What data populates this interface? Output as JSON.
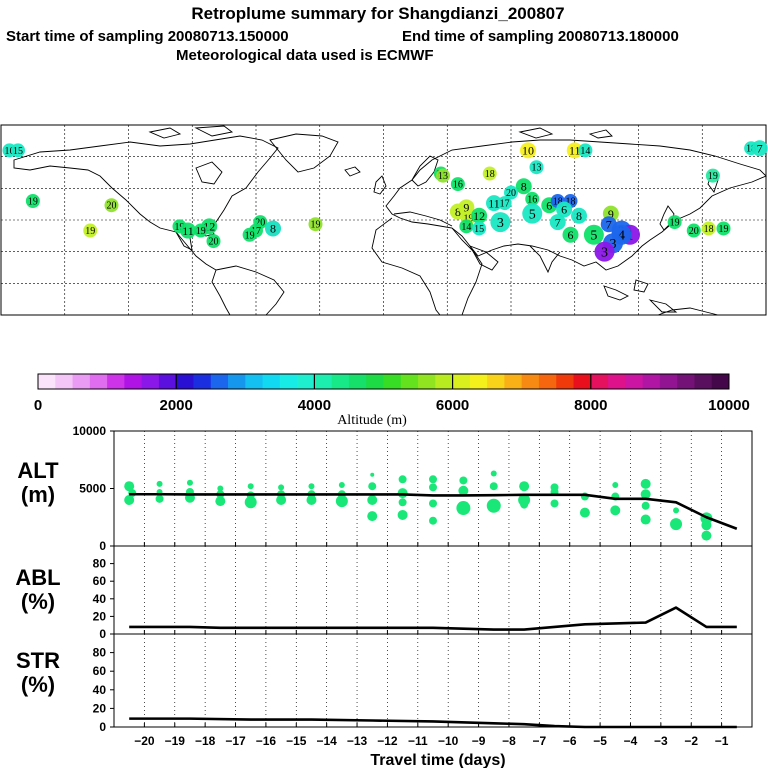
{
  "header": {
    "title": "Retroplume summary for Shangdianzi_200807",
    "start_label": "Start time of sampling 20080713.150000",
    "end_label": "End time of sampling 20080713.180000",
    "met_label": "Meteorological data used is ECMWF"
  },
  "map": {
    "clusters": [
      {
        "lon": -176,
        "lat": 78,
        "label": "16",
        "color": "#19e8c3"
      },
      {
        "lon": -172,
        "lat": 78,
        "label": "15",
        "color": "#19e8c3"
      },
      {
        "lon": 173,
        "lat": 79,
        "label": "18",
        "color": "#19e8c3"
      },
      {
        "lon": 177,
        "lat": 79,
        "label": "7",
        "color": "#19e8c3"
      },
      {
        "lon": 155,
        "lat": 66,
        "label": "19",
        "color": "#27e8a0"
      },
      {
        "lon": -128,
        "lat": 52,
        "label": "20",
        "color": "#8fe22b"
      },
      {
        "lon": -165,
        "lat": 54,
        "label": "19",
        "color": "#10e069"
      },
      {
        "lon": -138,
        "lat": 40,
        "label": "19",
        "color": "#c3f028"
      },
      {
        "lon": -82,
        "lat": 42,
        "label": "12",
        "color": "#10e069"
      },
      {
        "lon": -96,
        "lat": 42,
        "label": "19",
        "color": "#10e069"
      },
      {
        "lon": -92,
        "lat": 40,
        "label": "11",
        "color": "#10e069"
      },
      {
        "lon": -86,
        "lat": 40,
        "label": "19",
        "color": "#10e069"
      },
      {
        "lon": -80,
        "lat": 35,
        "label": "20",
        "color": "#10e069"
      },
      {
        "lon": -58,
        "lat": 44,
        "label": "20",
        "color": "#10e069"
      },
      {
        "lon": -60,
        "lat": 40,
        "label": "17",
        "color": "#10e069"
      },
      {
        "lon": -52,
        "lat": 41,
        "label": "8",
        "color": "#16e0c0"
      },
      {
        "lon": -63,
        "lat": 38,
        "label": "19",
        "color": "#10e069"
      },
      {
        "lon": -32,
        "lat": 43,
        "label": "19",
        "color": "#8fe22b"
      },
      {
        "lon": 27,
        "lat": 67,
        "label": "14",
        "color": "#10e069"
      },
      {
        "lon": 28,
        "lat": 66,
        "label": "13",
        "color": "#8fe22b"
      },
      {
        "lon": 35,
        "lat": 62,
        "label": "16",
        "color": "#10e069"
      },
      {
        "lon": 68,
        "lat": 78,
        "label": "10",
        "color": "#f7f020"
      },
      {
        "lon": 72,
        "lat": 70,
        "label": "13",
        "color": "#19e8c3"
      },
      {
        "lon": 90,
        "lat": 78,
        "label": "11",
        "color": "#f7f020"
      },
      {
        "lon": 95,
        "lat": 78,
        "label": "14",
        "color": "#19e8c3"
      },
      {
        "lon": 50,
        "lat": 67,
        "label": "18",
        "color": "#c3f028"
      },
      {
        "lon": 66,
        "lat": 61,
        "label": "8",
        "color": "#10e069"
      },
      {
        "lon": 60,
        "lat": 58,
        "label": "20",
        "color": "#19e8c3"
      },
      {
        "lon": 52,
        "lat": 53,
        "label": "11",
        "color": "#19e8c3"
      },
      {
        "lon": 57,
        "lat": 53,
        "label": "17",
        "color": "#19e8c3"
      },
      {
        "lon": 70,
        "lat": 55,
        "label": "16",
        "color": "#10e069"
      },
      {
        "lon": 35,
        "lat": 49,
        "label": "8",
        "color": "#c3f028"
      },
      {
        "lon": 39,
        "lat": 51,
        "label": "9",
        "color": "#c3f028"
      },
      {
        "lon": 40,
        "lat": 46,
        "label": "19",
        "color": "#c3f028"
      },
      {
        "lon": 45,
        "lat": 47,
        "label": "12",
        "color": "#10e069"
      },
      {
        "lon": 39,
        "lat": 42,
        "label": "14",
        "color": "#10e069"
      },
      {
        "lon": 45,
        "lat": 41,
        "label": "15",
        "color": "#19e8c3"
      },
      {
        "lon": 55,
        "lat": 44,
        "label": "3",
        "color": "#19e8c3"
      },
      {
        "lon": 70,
        "lat": 48,
        "label": "5",
        "color": "#19e8c3"
      },
      {
        "lon": 78,
        "lat": 52,
        "label": "6",
        "color": "#10e069"
      },
      {
        "lon": 82,
        "lat": 54,
        "label": "18",
        "color": "#1b66ec"
      },
      {
        "lon": 88,
        "lat": 54,
        "label": "18",
        "color": "#1b66ec"
      },
      {
        "lon": 85,
        "lat": 50,
        "label": "6",
        "color": "#19e8c3"
      },
      {
        "lon": 92,
        "lat": 47,
        "label": "8",
        "color": "#19e8c3"
      },
      {
        "lon": 82,
        "lat": 44,
        "label": "7",
        "color": "#19e8c3"
      },
      {
        "lon": 88,
        "lat": 38,
        "label": "6",
        "color": "#10e069"
      },
      {
        "lon": 99,
        "lat": 38,
        "label": "5",
        "color": "#10e069"
      },
      {
        "lon": 112,
        "lat": 40,
        "label": "2",
        "color": "#1b66ec"
      },
      {
        "lon": 116,
        "lat": 38,
        "label": "1",
        "color": "#8b17e8"
      },
      {
        "lon": 107,
        "lat": 48,
        "label": "9",
        "color": "#8fe22b"
      },
      {
        "lon": 112,
        "lat": 38,
        "label": "4",
        "color": "#1b66ec"
      },
      {
        "lon": 108,
        "lat": 34,
        "label": "3",
        "color": "#1b66ec"
      },
      {
        "lon": 104,
        "lat": 30,
        "label": "3",
        "color": "#8b17e8"
      },
      {
        "lon": 106,
        "lat": 43,
        "label": "7",
        "color": "#1b66ec"
      },
      {
        "lon": 146,
        "lat": 40,
        "label": "20",
        "color": "#10e069"
      },
      {
        "lon": 153,
        "lat": 41,
        "label": "18",
        "color": "#c3f028"
      },
      {
        "lon": 160,
        "lat": 41,
        "label": "19",
        "color": "#10e069"
      },
      {
        "lon": 137,
        "lat": 44,
        "label": "19",
        "color": "#10e069"
      }
    ]
  },
  "colorbar": {
    "colors": [
      "#fbe3fb",
      "#f3c6f7",
      "#ea9cf4",
      "#e06cf0",
      "#ce33e9",
      "#b013e6",
      "#8b17e8",
      "#5c10df",
      "#2a10d3",
      "#1b2fe1",
      "#1b66ec",
      "#1697ee",
      "#14bff1",
      "#12d9f2",
      "#17ece7",
      "#1eefcf",
      "#1ceeaf",
      "#17e888",
      "#16e06a",
      "#1ddb45",
      "#37dc25",
      "#64e21e",
      "#90e520",
      "#b8eb20",
      "#d9ef1e",
      "#f3f01c",
      "#f9d21a",
      "#f8b016",
      "#f68a12",
      "#f5660f",
      "#f13a0c",
      "#ea0f1d",
      "#e5115e",
      "#de138b",
      "#cc16a3",
      "#b015a4",
      "#921493",
      "#741278",
      "#5a0f5e",
      "#44084a"
    ],
    "tick_labels": [
      "0",
      "2000",
      "4000",
      "6000",
      "8000",
      "10000"
    ],
    "xlabel": "Altitude (m)"
  },
  "chart_data": [
    {
      "type": "line",
      "panel": "ALT",
      "title_line1": "ALT",
      "title_line2": "(m)",
      "x": [
        -20.5,
        -19.5,
        -18.5,
        -17.5,
        -16.5,
        -15.5,
        -14.5,
        -13.5,
        -12.5,
        -11.5,
        -10.5,
        -9.5,
        -8.5,
        -7.5,
        -6.5,
        -5.5,
        -4.5,
        -3.5,
        -2.5,
        -1.5,
        -0.5
      ],
      "y": [
        4500,
        4500,
        4480,
        4480,
        4480,
        4480,
        4480,
        4480,
        4480,
        4480,
        4400,
        4400,
        4420,
        4450,
        4450,
        4450,
        4100,
        4100,
        3800,
        2500,
        1500
      ],
      "ylim": [
        0,
        10000
      ],
      "yticks": [
        0,
        5000,
        10000
      ],
      "yticklabels": [
        "0",
        "5000",
        "10000"
      ],
      "scatter": [
        {
          "x": -20.5,
          "y": 5200,
          "r": 5
        },
        {
          "x": -20.5,
          "y": 4000,
          "r": 5
        },
        {
          "x": -20.4,
          "y": 4600,
          "r": 4
        },
        {
          "x": -19.5,
          "y": 5400,
          "r": 3
        },
        {
          "x": -19.5,
          "y": 4100,
          "r": 4
        },
        {
          "x": -19.5,
          "y": 4700,
          "r": 3
        },
        {
          "x": -18.5,
          "y": 5500,
          "r": 3
        },
        {
          "x": -18.5,
          "y": 4200,
          "r": 5
        },
        {
          "x": -18.5,
          "y": 4700,
          "r": 4
        },
        {
          "x": -17.5,
          "y": 5000,
          "r": 3
        },
        {
          "x": -17.5,
          "y": 3900,
          "r": 5
        },
        {
          "x": -17.5,
          "y": 4500,
          "r": 4
        },
        {
          "x": -16.5,
          "y": 5200,
          "r": 3
        },
        {
          "x": -16.5,
          "y": 3800,
          "r": 6
        },
        {
          "x": -16.5,
          "y": 4400,
          "r": 4
        },
        {
          "x": -15.5,
          "y": 5100,
          "r": 3
        },
        {
          "x": -15.5,
          "y": 4000,
          "r": 5
        },
        {
          "x": -15.5,
          "y": 4500,
          "r": 4
        },
        {
          "x": -14.5,
          "y": 5200,
          "r": 3
        },
        {
          "x": -14.5,
          "y": 4000,
          "r": 5
        },
        {
          "x": -14.5,
          "y": 4500,
          "r": 4
        },
        {
          "x": -13.5,
          "y": 5300,
          "r": 3
        },
        {
          "x": -13.5,
          "y": 3900,
          "r": 6
        },
        {
          "x": -13.5,
          "y": 4500,
          "r": 4
        },
        {
          "x": -12.5,
          "y": 6200,
          "r": 2
        },
        {
          "x": -12.5,
          "y": 5200,
          "r": 4
        },
        {
          "x": -12.5,
          "y": 4000,
          "r": 5
        },
        {
          "x": -12.5,
          "y": 2600,
          "r": 5
        },
        {
          "x": -11.5,
          "y": 5800,
          "r": 4
        },
        {
          "x": -11.5,
          "y": 4600,
          "r": 5
        },
        {
          "x": -11.5,
          "y": 3800,
          "r": 4
        },
        {
          "x": -11.5,
          "y": 2700,
          "r": 5
        },
        {
          "x": -10.5,
          "y": 5800,
          "r": 4
        },
        {
          "x": -10.5,
          "y": 5100,
          "r": 4
        },
        {
          "x": -10.5,
          "y": 3700,
          "r": 4
        },
        {
          "x": -10.5,
          "y": 2200,
          "r": 4
        },
        {
          "x": -9.5,
          "y": 5700,
          "r": 4
        },
        {
          "x": -9.5,
          "y": 4800,
          "r": 5
        },
        {
          "x": -9.5,
          "y": 3300,
          "r": 7
        },
        {
          "x": -8.5,
          "y": 6300,
          "r": 3
        },
        {
          "x": -8.5,
          "y": 5200,
          "r": 4
        },
        {
          "x": -8.5,
          "y": 3500,
          "r": 7
        },
        {
          "x": -7.5,
          "y": 5200,
          "r": 5
        },
        {
          "x": -7.5,
          "y": 4000,
          "r": 6
        },
        {
          "x": -7.5,
          "y": 3600,
          "r": 4
        },
        {
          "x": -6.5,
          "y": 5100,
          "r": 4
        },
        {
          "x": -6.5,
          "y": 4700,
          "r": 4
        },
        {
          "x": -6.5,
          "y": 3700,
          "r": 4
        },
        {
          "x": -5.5,
          "y": 4300,
          "r": 4
        },
        {
          "x": -5.5,
          "y": 2900,
          "r": 5
        },
        {
          "x": -4.5,
          "y": 5300,
          "r": 3
        },
        {
          "x": -4.5,
          "y": 4300,
          "r": 4
        },
        {
          "x": -4.5,
          "y": 3100,
          "r": 5
        },
        {
          "x": -3.5,
          "y": 5400,
          "r": 5
        },
        {
          "x": -3.5,
          "y": 4500,
          "r": 5
        },
        {
          "x": -3.5,
          "y": 3500,
          "r": 4
        },
        {
          "x": -3.5,
          "y": 2300,
          "r": 5
        },
        {
          "x": -2.5,
          "y": 1900,
          "r": 6
        },
        {
          "x": -2.5,
          "y": 3100,
          "r": 3
        },
        {
          "x": -1.5,
          "y": 2400,
          "r": 6
        },
        {
          "x": -1.5,
          "y": 1800,
          "r": 5
        },
        {
          "x": -1.5,
          "y": 900,
          "r": 5
        }
      ]
    },
    {
      "type": "line",
      "panel": "ABL",
      "title_line1": "ABL",
      "title_line2": "(%)",
      "x": [
        -20.5,
        -18.5,
        -17.5,
        -16.5,
        -15.5,
        -14.5,
        -13.5,
        -12.5,
        -11.5,
        -10.5,
        -9.5,
        -8.5,
        -7.5,
        -6.5,
        -5.5,
        -4.5,
        -3.5,
        -2.5,
        -1.5,
        -0.5
      ],
      "y": [
        8,
        8,
        7,
        7,
        7,
        7,
        7,
        7,
        7,
        7,
        6,
        5,
        5,
        8,
        11,
        12,
        13,
        30,
        8,
        8
      ],
      "ylim": [
        0,
        100
      ],
      "yticks": [
        0,
        20,
        40,
        60,
        80
      ],
      "yticklabels": [
        "0",
        "20",
        "40",
        "60",
        "80"
      ]
    },
    {
      "type": "line",
      "panel": "STR",
      "title_line1": "STR",
      "title_line2": "(%)",
      "x": [
        -20.5,
        -18.5,
        -16.5,
        -14.5,
        -12.5,
        -10.5,
        -8.5,
        -7.5,
        -6.5,
        -5.5,
        -4.5,
        -3.5,
        -2.5,
        -1.5,
        -0.5
      ],
      "y": [
        9,
        9,
        8,
        8,
        7,
        6,
        4,
        3,
        1,
        0,
        0,
        0,
        0,
        0,
        0
      ],
      "ylim": [
        0,
        100
      ],
      "yticks": [
        0,
        20,
        40,
        60,
        80
      ],
      "yticklabels": [
        "0",
        "20",
        "40",
        "60",
        "80"
      ]
    }
  ],
  "xaxis": {
    "ticks": [
      -20,
      -19,
      -18,
      -17,
      -16,
      -15,
      -14,
      -13,
      -12,
      -11,
      -10,
      -9,
      -8,
      -7,
      -6,
      -5,
      -4,
      -3,
      -2,
      -1
    ],
    "tick_labels": [
      "−20",
      "−19",
      "−18",
      "−17",
      "−16",
      "−15",
      "−14",
      "−13",
      "−12",
      "−11",
      "−10",
      "−9",
      "−8",
      "−7",
      "−6",
      "−5",
      "−4",
      "−3",
      "−2",
      "−1"
    ],
    "xlabel": "Travel time (days)",
    "xlim": [
      -21,
      0
    ]
  }
}
